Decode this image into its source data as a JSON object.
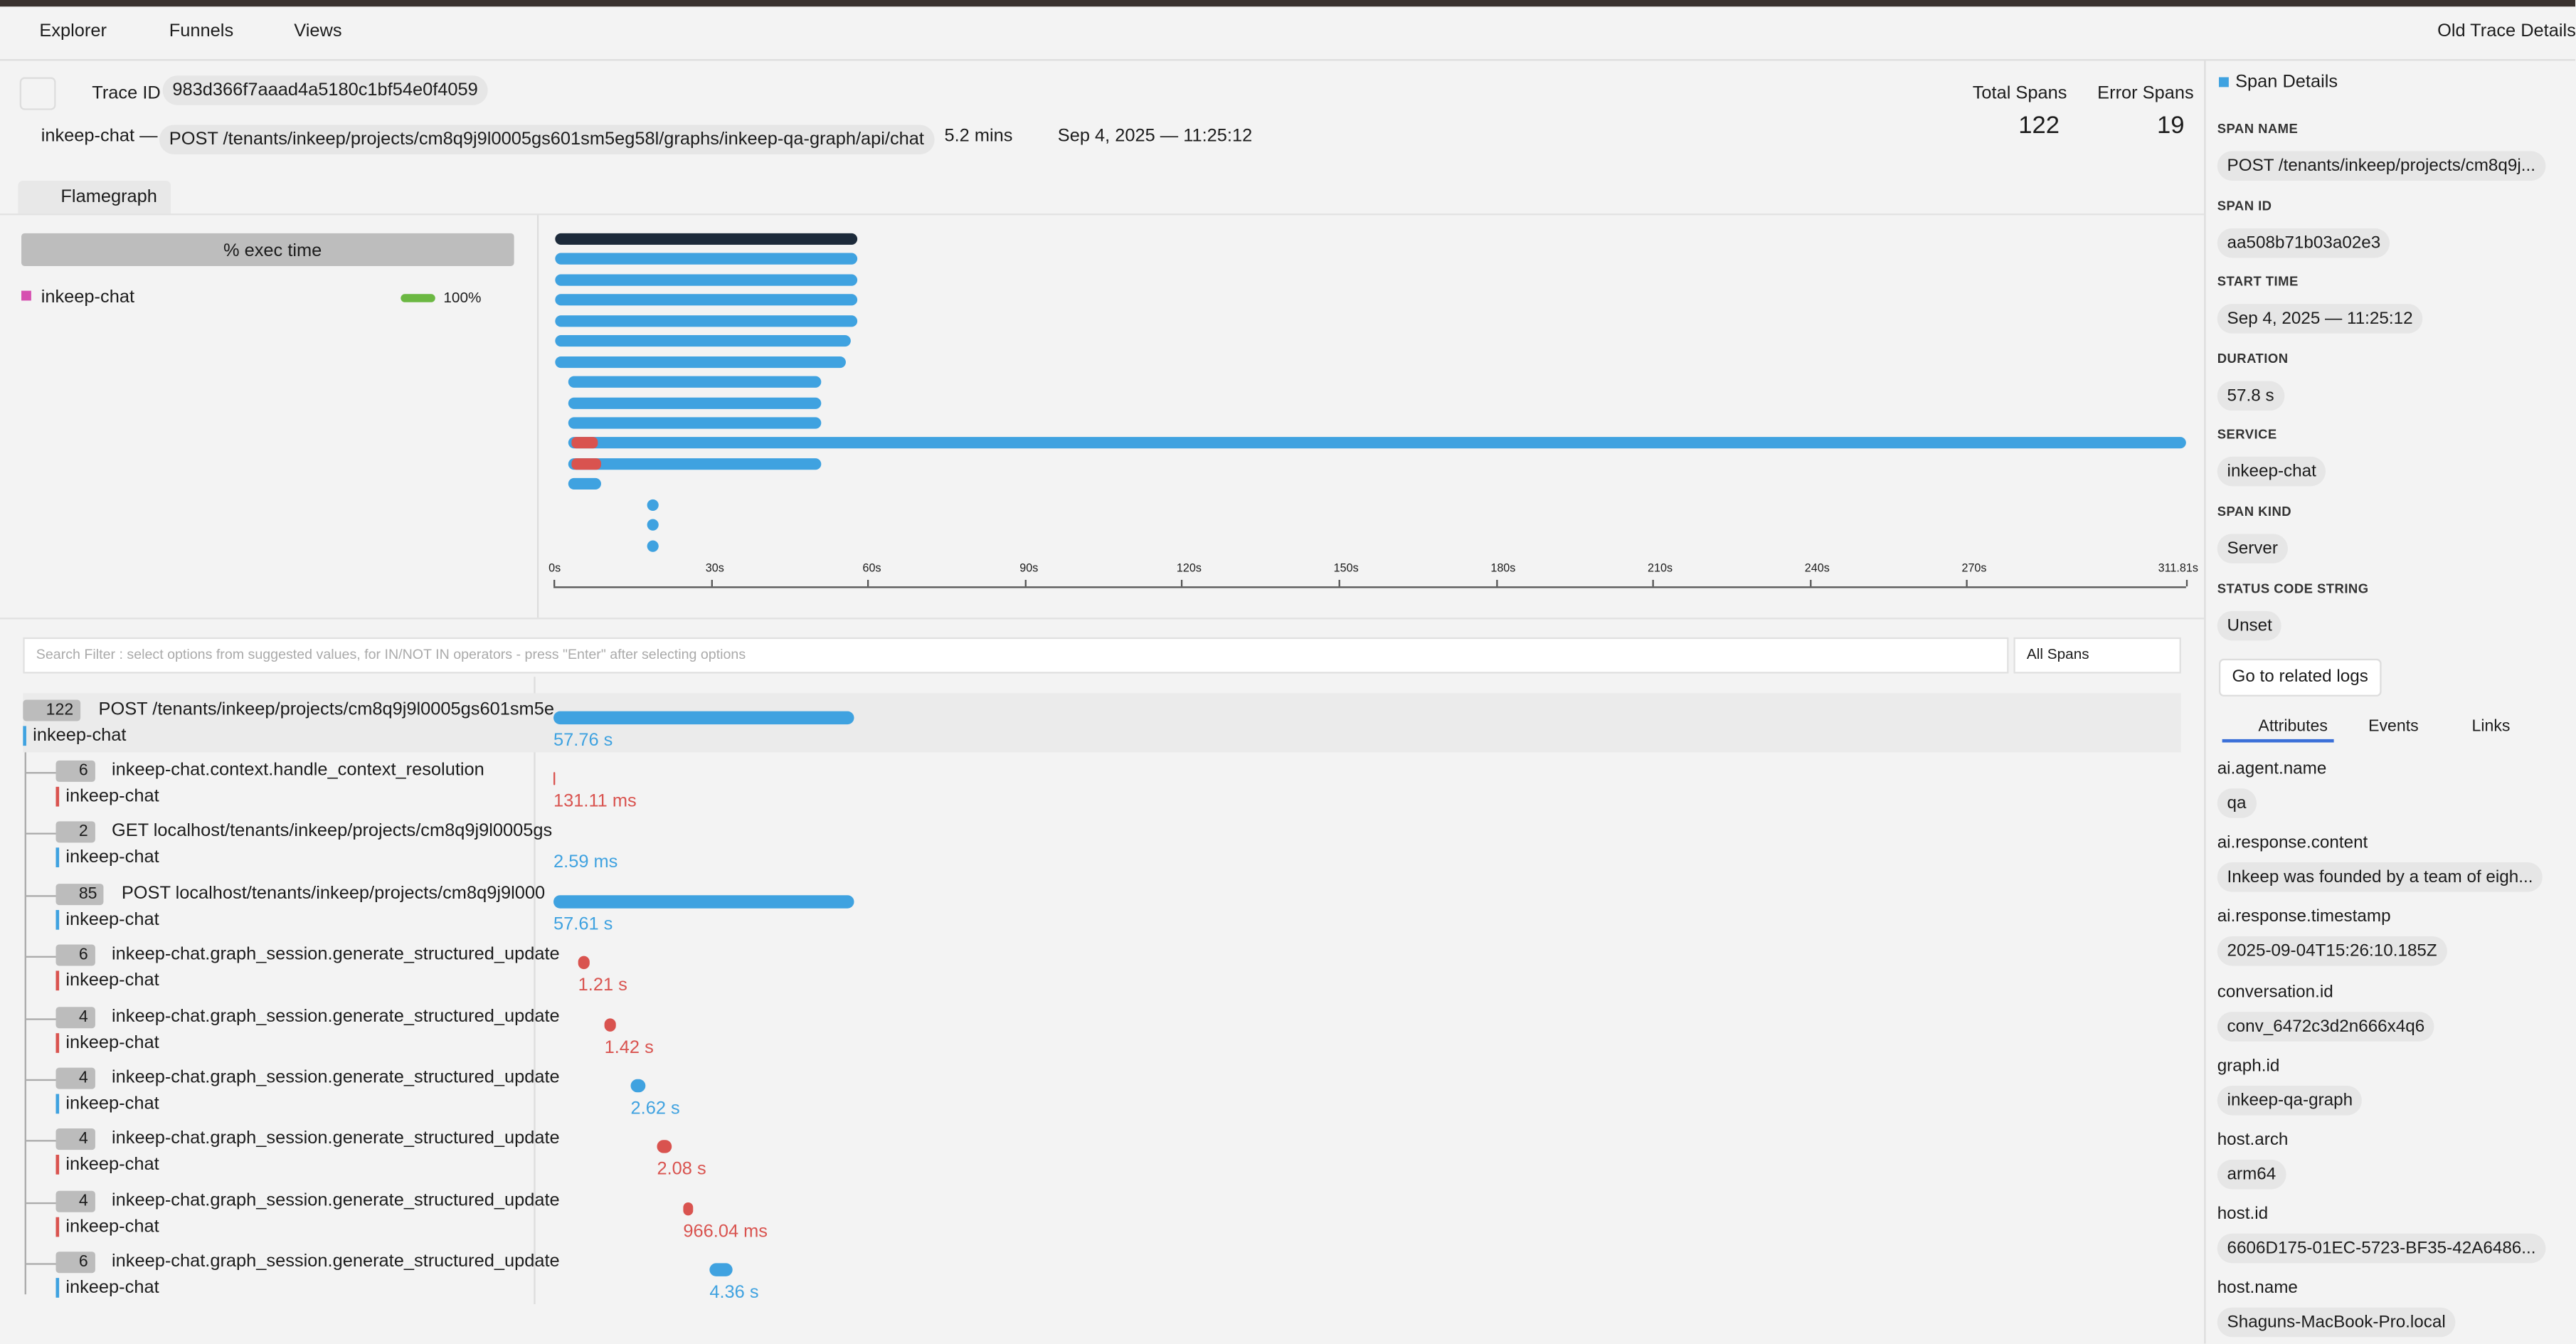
{
  "nav": {
    "tabs": [
      "Explorer",
      "Funnels",
      "Views"
    ],
    "old_trace": "Old Trace Details"
  },
  "trace": {
    "id_label": "Trace ID",
    "id": "983d366f7aaad4a5180c1bf54e0f4059",
    "service": "inkeep-chat —",
    "route": "POST /tenants/inkeep/projects/cm8q9j9l0005gs601sm5eg58l/graphs/inkeep-qa-graph/api/chat",
    "duration": "5.2 mins",
    "date": "Sep 4, 2025 — 11:25:12"
  },
  "stats": [
    {
      "label": "Total Spans",
      "value": 122
    },
    {
      "label": "Error Spans",
      "value": 19
    }
  ],
  "flamegraph": {
    "tab": "Flamegraph",
    "column": "% exec time",
    "service": "inkeep-chat",
    "percent": "100%",
    "axis": [
      "0s",
      "30s",
      "60s",
      "90s",
      "120s",
      "150s",
      "180s",
      "210s",
      "240s",
      "270s",
      "311.81s"
    ]
  },
  "filter": {
    "placeholder": "Search Filter : select options from suggested values, for IN/NOT IN operators - press \"Enter\" after selecting options",
    "select": "All Spans"
  },
  "spans": [
    {
      "count": 122,
      "name": "POST /tenants/inkeep/projects/cm8q9j9l0005gs601sm5e",
      "service": "inkeep-chat",
      "duration": "57.76 s",
      "error": false
    },
    {
      "count": 6,
      "name": "inkeep-chat.context.handle_context_resolution",
      "service": "inkeep-chat",
      "duration": "131.11 ms",
      "error": true
    },
    {
      "count": 2,
      "name": "GET localhost/tenants/inkeep/projects/cm8q9j9l0005gs",
      "service": "inkeep-chat",
      "duration": "2.59 ms",
      "error": false
    },
    {
      "count": 85,
      "name": "POST localhost/tenants/inkeep/projects/cm8q9j9l000",
      "service": "inkeep-chat",
      "duration": "57.61 s",
      "error": false
    },
    {
      "count": 6,
      "name": "inkeep-chat.graph_session.generate_structured_update",
      "service": "inkeep-chat",
      "duration": "1.21 s",
      "error": true
    },
    {
      "count": 4,
      "name": "inkeep-chat.graph_session.generate_structured_update",
      "service": "inkeep-chat",
      "duration": "1.42 s",
      "error": true
    },
    {
      "count": 4,
      "name": "inkeep-chat.graph_session.generate_structured_update",
      "service": "inkeep-chat",
      "duration": "2.62 s",
      "error": false
    },
    {
      "count": 4,
      "name": "inkeep-chat.graph_session.generate_structured_update",
      "service": "inkeep-chat",
      "duration": "2.08 s",
      "error": true
    },
    {
      "count": 4,
      "name": "inkeep-chat.graph_session.generate_structured_update",
      "service": "inkeep-chat",
      "duration": "966.04 ms",
      "error": true
    },
    {
      "count": 6,
      "name": "inkeep-chat.graph_session.generate_structured_update",
      "service": "inkeep-chat",
      "duration": "4.36 s",
      "error": false
    }
  ],
  "details": {
    "title": "Span Details",
    "fields": [
      {
        "label": "SPAN NAME",
        "value": "POST /tenants/inkeep/projects/cm8q9j..."
      },
      {
        "label": "SPAN ID",
        "value": "aa508b71b03a02e3"
      },
      {
        "label": "START TIME",
        "value": "Sep 4, 2025 — 11:25:12"
      },
      {
        "label": "DURATION",
        "value": "57.8 s"
      },
      {
        "label": "SERVICE",
        "value": "inkeep-chat"
      },
      {
        "label": "SPAN KIND",
        "value": "Server"
      },
      {
        "label": "STATUS CODE STRING",
        "value": "Unset"
      }
    ],
    "button": "Go to related logs",
    "tabs": [
      "Attributes",
      "Events",
      "Links"
    ],
    "attributes": [
      {
        "key": "ai.agent.name",
        "value": "qa"
      },
      {
        "key": "ai.response.content",
        "value": "Inkeep was founded by a team of eigh..."
      },
      {
        "key": "ai.response.timestamp",
        "value": "2025-09-04T15:26:10.185Z"
      },
      {
        "key": "conversation.id",
        "value": "conv_6472c3d2n666x4q6"
      },
      {
        "key": "graph.id",
        "value": "inkeep-qa-graph"
      },
      {
        "key": "host.arch",
        "value": "arm64"
      },
      {
        "key": "host.id",
        "value": "6606D175-01EC-5723-BF35-42A6486..."
      },
      {
        "key": "host.name",
        "value": "Shaguns-MacBook-Pro.local"
      }
    ]
  }
}
